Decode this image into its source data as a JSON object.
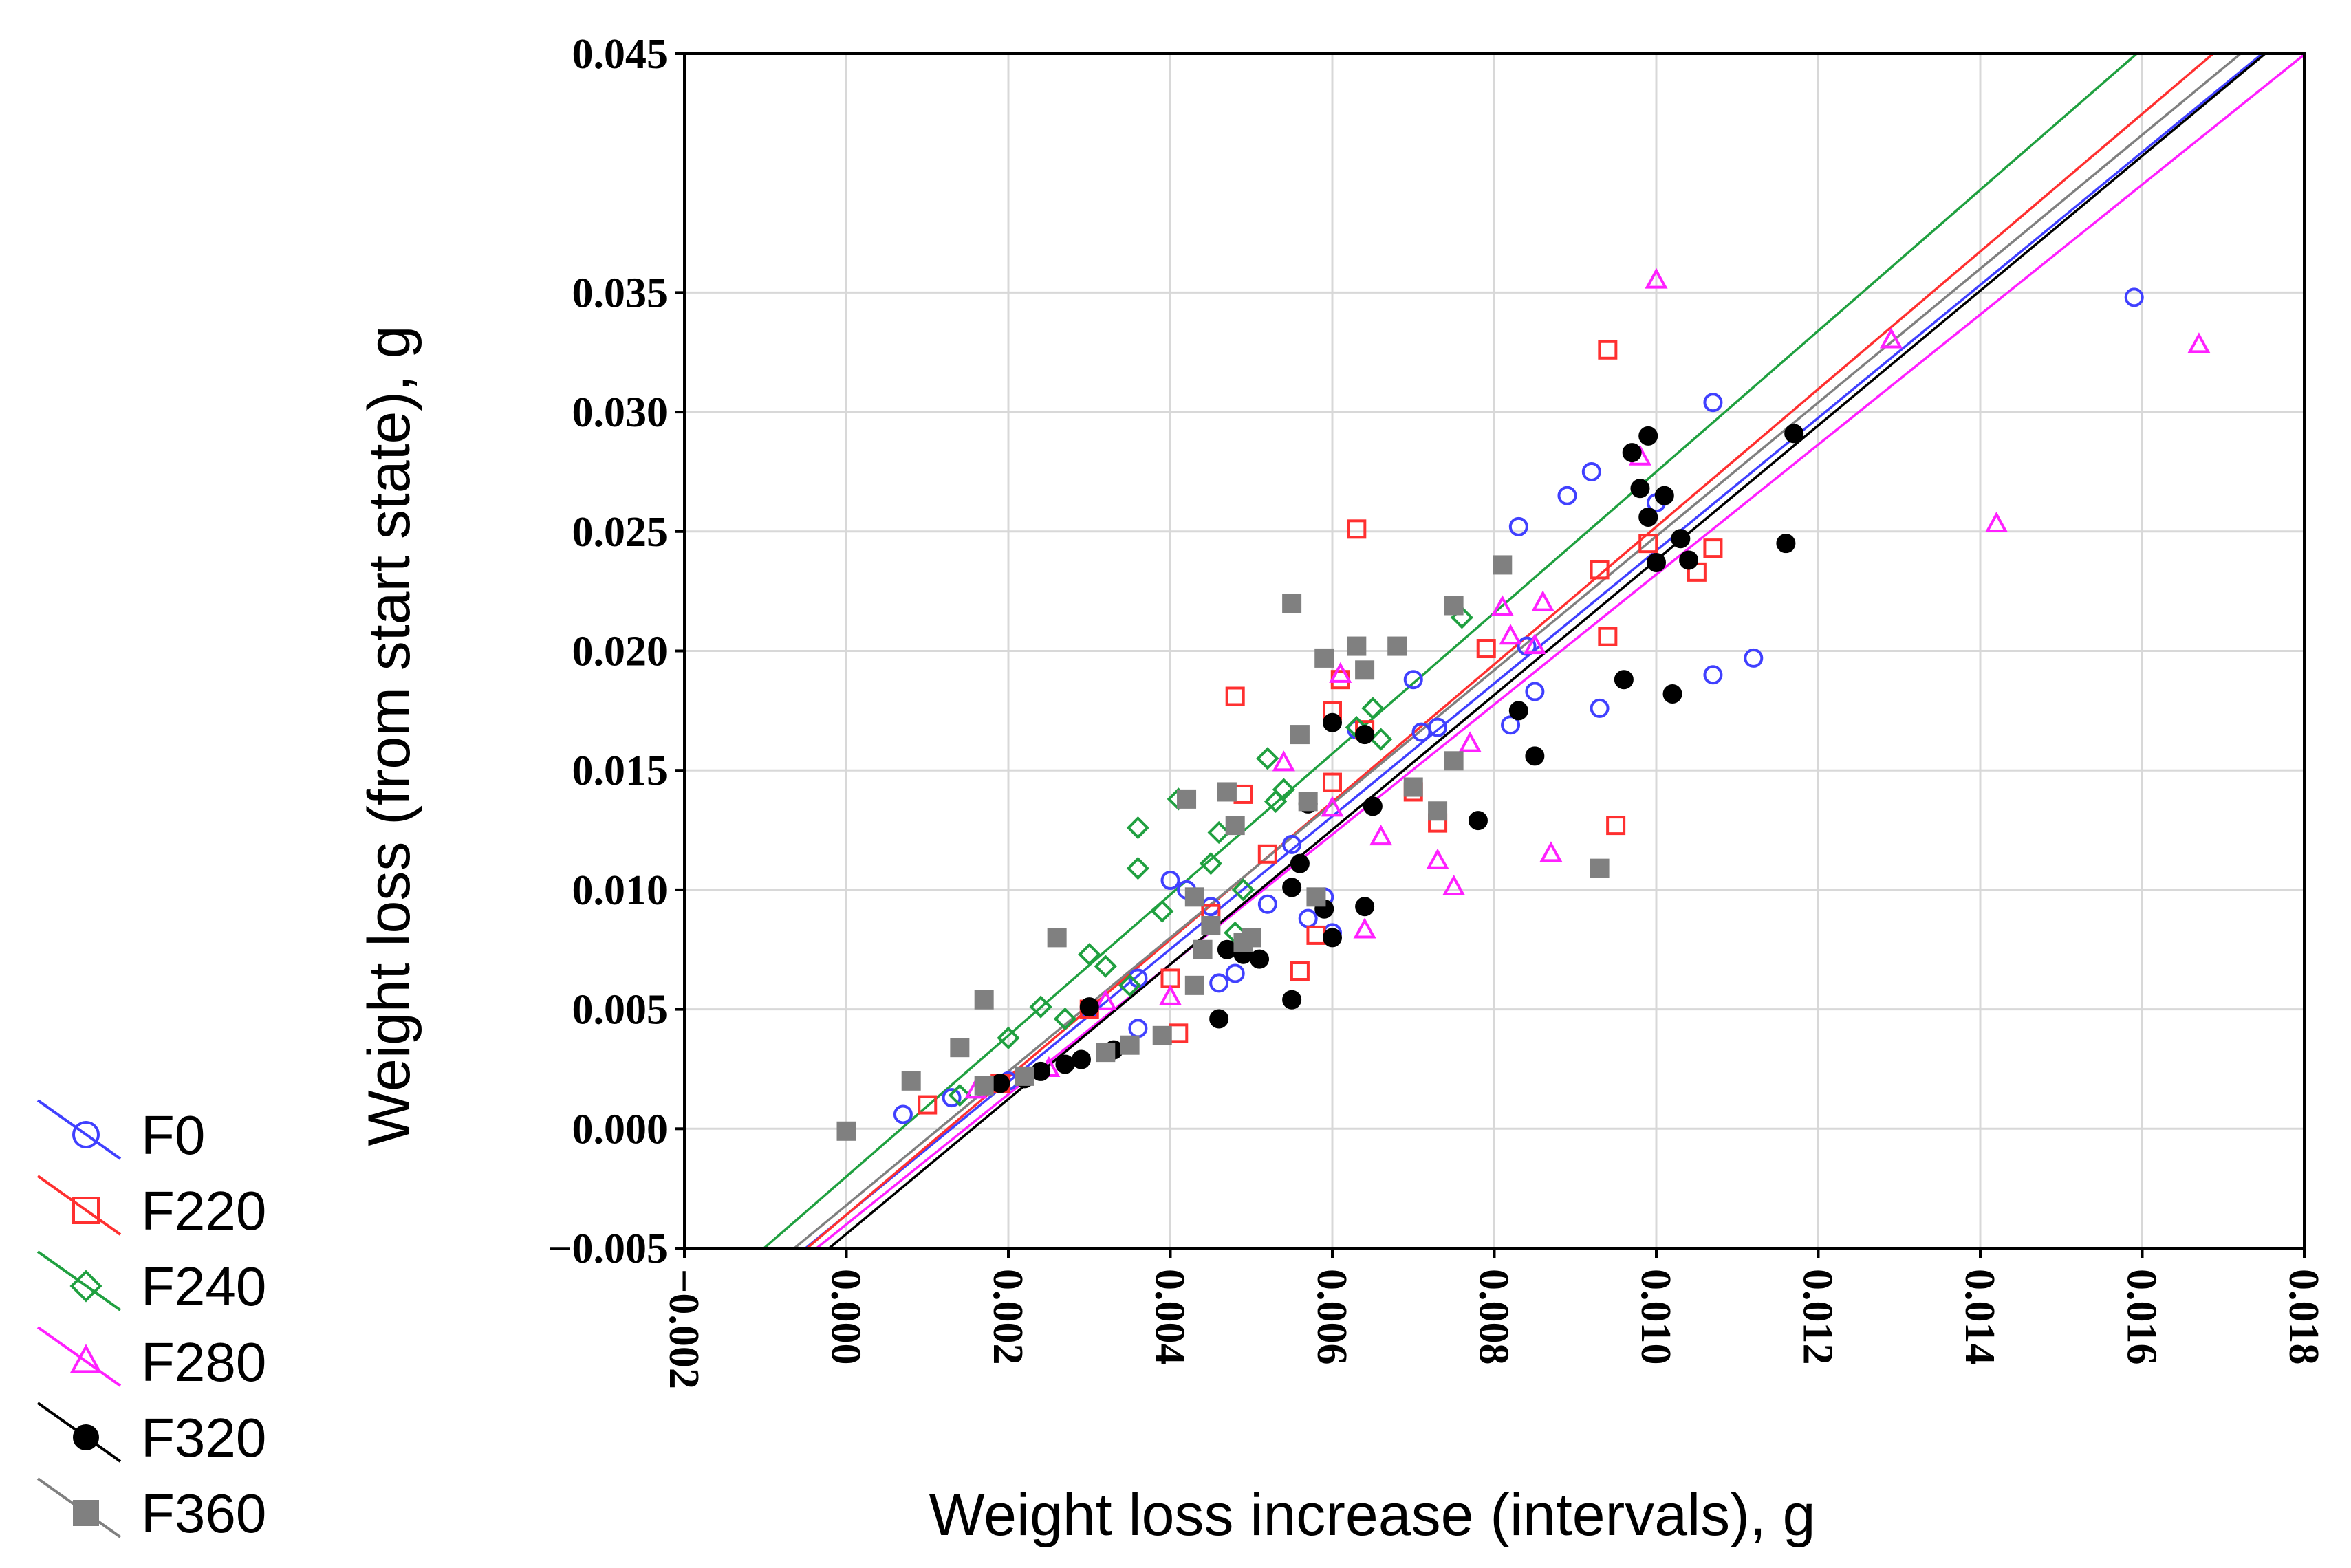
{
  "chart_data": {
    "type": "scatter",
    "title": "",
    "xlabel": "Weight loss increase (intervals), g",
    "ylabel": "Weight loss (from start state), g",
    "xlim": [
      -0.002,
      0.018
    ],
    "ylim": [
      -0.005,
      0.045
    ],
    "grid": true,
    "legend_position": "bottom-left outside",
    "x_ticks": [
      -0.002,
      0.0,
      0.002,
      0.004,
      0.006,
      0.008,
      0.01,
      0.012,
      0.014,
      0.016,
      0.018
    ],
    "x_tick_labels": [
      "−0.002",
      "0.000",
      "0.002",
      "0.004",
      "0.006",
      "0.008",
      "0.010",
      "0.012",
      "0.014",
      "0.016",
      "0.018"
    ],
    "y_ticks": [
      -0.005,
      0.0,
      0.005,
      0.01,
      0.015,
      0.02,
      0.025,
      0.03,
      0.035,
      0.045
    ],
    "y_tick_labels": [
      "−0.005",
      "0.000",
      "0.005",
      "0.010",
      "0.015",
      "0.020",
      "0.025",
      "0.030",
      "0.035",
      "0.045"
    ],
    "series": [
      {
        "name": "F0",
        "color": "#4040ff",
        "marker": "circle",
        "filled": false,
        "fit": {
          "slope": 2.78,
          "intercept": -0.0036
        },
        "points": [
          [
            0.0007,
            0.0006
          ],
          [
            0.0013,
            0.0013
          ],
          [
            0.002,
            0.002
          ],
          [
            0.003,
            0.005
          ],
          [
            0.0036,
            0.0063
          ],
          [
            0.0036,
            0.0042
          ],
          [
            0.004,
            0.0104
          ],
          [
            0.0042,
            0.01
          ],
          [
            0.0045,
            0.0093
          ],
          [
            0.0046,
            0.0061
          ],
          [
            0.0048,
            0.0065
          ],
          [
            0.0052,
            0.0094
          ],
          [
            0.0055,
            0.0119
          ],
          [
            0.0057,
            0.0088
          ],
          [
            0.0059,
            0.0097
          ],
          [
            0.006,
            0.0082
          ],
          [
            0.0063,
            0.0167
          ],
          [
            0.007,
            0.0188
          ],
          [
            0.0071,
            0.0166
          ],
          [
            0.0073,
            0.0168
          ],
          [
            0.0082,
            0.0169
          ],
          [
            0.0083,
            0.0252
          ],
          [
            0.0084,
            0.0202
          ],
          [
            0.0085,
            0.0183
          ],
          [
            0.0089,
            0.0265
          ],
          [
            0.0092,
            0.0275
          ],
          [
            0.0093,
            0.0176
          ],
          [
            0.01,
            0.0262
          ],
          [
            0.0107,
            0.0304
          ],
          [
            0.0107,
            0.019
          ],
          [
            0.0112,
            0.0197
          ],
          [
            0.0159,
            0.0348
          ]
        ]
      },
      {
        "name": "F220",
        "color": "#ff3030",
        "marker": "square",
        "filled": false,
        "fit": {
          "slope": 2.88,
          "intercept": -0.0036
        },
        "points": [
          [
            0.001,
            0.001
          ],
          [
            0.0019,
            0.0019
          ],
          [
            0.003,
            0.005
          ],
          [
            0.004,
            0.0063
          ],
          [
            0.0041,
            0.004
          ],
          [
            0.0045,
            0.009
          ],
          [
            0.0048,
            0.0181
          ],
          [
            0.0049,
            0.014
          ],
          [
            0.0052,
            0.0115
          ],
          [
            0.0056,
            0.0066
          ],
          [
            0.0058,
            0.0081
          ],
          [
            0.006,
            0.0175
          ],
          [
            0.006,
            0.0145
          ],
          [
            0.0061,
            0.0188
          ],
          [
            0.0063,
            0.0251
          ],
          [
            0.0064,
            0.0167
          ],
          [
            0.007,
            0.0141
          ],
          [
            0.0073,
            0.0128
          ],
          [
            0.0079,
            0.0201
          ],
          [
            0.0093,
            0.0234
          ],
          [
            0.0094,
            0.0206
          ],
          [
            0.0094,
            0.0326
          ],
          [
            0.0095,
            0.0127
          ],
          [
            0.0099,
            0.0245
          ],
          [
            0.0105,
            0.0233
          ],
          [
            0.0107,
            0.0243
          ]
        ]
      },
      {
        "name": "F240",
        "color": "#20a040",
        "marker": "diamond",
        "filled": false,
        "fit": {
          "slope": 2.95,
          "intercept": -0.002
        },
        "points": [
          [
            0.0014,
            0.0014
          ],
          [
            0.002,
            0.0038
          ],
          [
            0.0024,
            0.0051
          ],
          [
            0.0027,
            0.0046
          ],
          [
            0.003,
            0.0073
          ],
          [
            0.0032,
            0.0068
          ],
          [
            0.0035,
            0.006
          ],
          [
            0.0036,
            0.0109
          ],
          [
            0.0036,
            0.0126
          ],
          [
            0.0039,
            0.0091
          ],
          [
            0.0041,
            0.0138
          ],
          [
            0.0045,
            0.0111
          ],
          [
            0.0046,
            0.0124
          ],
          [
            0.0048,
            0.0082
          ],
          [
            0.0049,
            0.01
          ],
          [
            0.0052,
            0.0155
          ],
          [
            0.0053,
            0.0137
          ],
          [
            0.0054,
            0.0142
          ],
          [
            0.0063,
            0.0168
          ],
          [
            0.0065,
            0.0176
          ],
          [
            0.0066,
            0.0163
          ],
          [
            0.0076,
            0.0214
          ]
        ]
      },
      {
        "name": "F280",
        "color": "#ff20ff",
        "marker": "triangle",
        "filled": false,
        "fit": {
          "slope": 2.72,
          "intercept": -0.004
        },
        "points": [
          [
            0.0016,
            0.0016
          ],
          [
            0.0025,
            0.0025
          ],
          [
            0.0032,
            0.0053
          ],
          [
            0.004,
            0.0055
          ],
          [
            0.0054,
            0.0153
          ],
          [
            0.006,
            0.0134
          ],
          [
            0.0061,
            0.019
          ],
          [
            0.0064,
            0.0083
          ],
          [
            0.0066,
            0.0122
          ],
          [
            0.0073,
            0.0112
          ],
          [
            0.0075,
            0.0101
          ],
          [
            0.0077,
            0.0161
          ],
          [
            0.0081,
            0.0218
          ],
          [
            0.0082,
            0.0206
          ],
          [
            0.0085,
            0.0202
          ],
          [
            0.0086,
            0.022
          ],
          [
            0.0087,
            0.0115
          ],
          [
            0.0098,
            0.0281
          ],
          [
            0.01,
            0.0355
          ],
          [
            0.0129,
            0.033
          ],
          [
            0.0142,
            0.0253
          ],
          [
            0.0167,
            0.0328
          ]
        ]
      },
      {
        "name": "F320",
        "color": "#000000",
        "marker": "circle",
        "filled": true,
        "fit": {
          "slope": 2.82,
          "intercept": -0.0044
        },
        "points": [
          [
            0.0019,
            0.0019
          ],
          [
            0.0022,
            0.0021
          ],
          [
            0.0024,
            0.0024
          ],
          [
            0.0027,
            0.0027
          ],
          [
            0.0029,
            0.0029
          ],
          [
            0.003,
            0.0051
          ],
          [
            0.0033,
            0.0033
          ],
          [
            0.0046,
            0.0046
          ],
          [
            0.0047,
            0.0075
          ],
          [
            0.0049,
            0.0073
          ],
          [
            0.0051,
            0.0071
          ],
          [
            0.0055,
            0.0054
          ],
          [
            0.0055,
            0.0101
          ],
          [
            0.0056,
            0.0111
          ],
          [
            0.0057,
            0.0136
          ],
          [
            0.0059,
            0.0092
          ],
          [
            0.006,
            0.008
          ],
          [
            0.006,
            0.017
          ],
          [
            0.0064,
            0.0165
          ],
          [
            0.0064,
            0.0093
          ],
          [
            0.0065,
            0.0135
          ],
          [
            0.0078,
            0.0129
          ],
          [
            0.0083,
            0.0175
          ],
          [
            0.0085,
            0.0156
          ],
          [
            0.0096,
            0.0188
          ],
          [
            0.0097,
            0.0283
          ],
          [
            0.0098,
            0.0268
          ],
          [
            0.0099,
            0.029
          ],
          [
            0.0099,
            0.0256
          ],
          [
            0.01,
            0.0237
          ],
          [
            0.0101,
            0.0265
          ],
          [
            0.0102,
            0.0182
          ],
          [
            0.0103,
            0.0247
          ],
          [
            0.0104,
            0.0238
          ],
          [
            0.0116,
            0.0245
          ],
          [
            0.0117,
            0.0291
          ]
        ]
      },
      {
        "name": "F360",
        "color": "#808080",
        "marker": "square",
        "filled": true,
        "fit": {
          "slope": 2.8,
          "intercept": -0.0032
        },
        "points": [
          [
            0.0,
            -0.0001
          ],
          [
            0.0008,
            0.002
          ],
          [
            0.0014,
            0.0034
          ],
          [
            0.0017,
            0.0054
          ],
          [
            0.0017,
            0.0018
          ],
          [
            0.0022,
            0.0022
          ],
          [
            0.0026,
            0.008
          ],
          [
            0.0032,
            0.0032
          ],
          [
            0.0035,
            0.0035
          ],
          [
            0.0039,
            0.0039
          ],
          [
            0.0042,
            0.0138
          ],
          [
            0.0043,
            0.0097
          ],
          [
            0.0043,
            0.006
          ],
          [
            0.0044,
            0.0075
          ],
          [
            0.0045,
            0.0085
          ],
          [
            0.0047,
            0.0141
          ],
          [
            0.0048,
            0.0127
          ],
          [
            0.0049,
            0.0078
          ],
          [
            0.005,
            0.008
          ],
          [
            0.0055,
            0.022
          ],
          [
            0.0056,
            0.0165
          ],
          [
            0.0057,
            0.0137
          ],
          [
            0.0058,
            0.0097
          ],
          [
            0.0059,
            0.0197
          ],
          [
            0.0063,
            0.0202
          ],
          [
            0.0064,
            0.0192
          ],
          [
            0.0068,
            0.0202
          ],
          [
            0.007,
            0.0143
          ],
          [
            0.0073,
            0.0133
          ],
          [
            0.0075,
            0.0219
          ],
          [
            0.0075,
            0.0154
          ],
          [
            0.0081,
            0.0236
          ],
          [
            0.0093,
            0.0109
          ]
        ]
      }
    ]
  }
}
